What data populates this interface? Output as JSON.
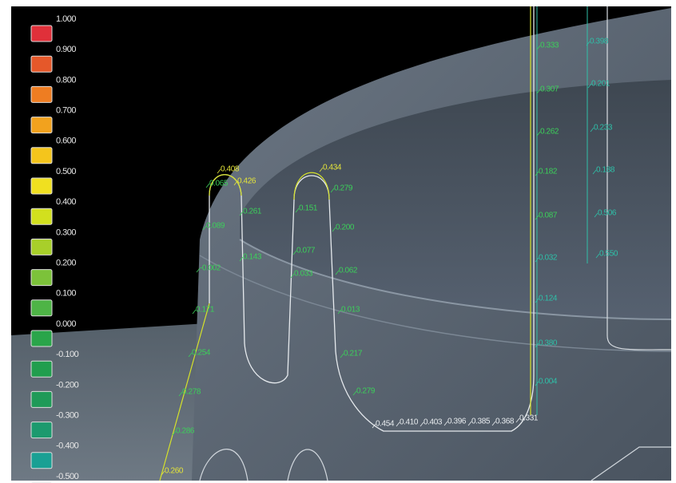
{
  "legend": [
    {
      "label": "1.000",
      "color": "#e0303a"
    },
    {
      "label": "0.900",
      "color": "#e5582a"
    },
    {
      "label": "0.800",
      "color": "#ee7d22"
    },
    {
      "label": "0.700",
      "color": "#f2a21e"
    },
    {
      "label": "0.600",
      "color": "#f4c51c"
    },
    {
      "label": "0.500",
      "color": "#f0e020"
    },
    {
      "label": "0.400",
      "color": "#d2e01e"
    },
    {
      "label": "0.300",
      "color": "#a8cf2a"
    },
    {
      "label": "0.200",
      "color": "#7cc23a"
    },
    {
      "label": "0.100",
      "color": "#4eb446"
    },
    {
      "label": "0.000",
      "color": "#2aa54a"
    },
    {
      "label": "-0.100",
      "color": "#219e4e"
    },
    {
      "label": "-0.200",
      "color": "#1f9a58"
    },
    {
      "label": "-0.300",
      "color": "#1c9a6e"
    },
    {
      "label": "-0.400",
      "color": "#1aa094"
    },
    {
      "label": "-0.500",
      "color": "#c8cfd4"
    }
  ],
  "annotations": [
    {
      "text": "0.408"
    },
    {
      "text": "0.426"
    },
    {
      "text": "0.065"
    },
    {
      "text": "0.261"
    },
    {
      "text": "0.089"
    },
    {
      "text": "0.143"
    },
    {
      "text": "-0.002"
    },
    {
      "text": "0.171"
    },
    {
      "text": "0.254"
    },
    {
      "text": "0.278"
    },
    {
      "text": "0.286"
    },
    {
      "text": "0.260"
    },
    {
      "text": "0.434"
    },
    {
      "text": "0.279"
    },
    {
      "text": "0.151"
    },
    {
      "text": "0.200"
    },
    {
      "text": "0.077"
    },
    {
      "text": "0.033"
    },
    {
      "text": "0.062"
    },
    {
      "text": "0.013"
    },
    {
      "text": "0.217"
    },
    {
      "text": "0.279"
    },
    {
      "text": "0.454"
    },
    {
      "text": "0.410"
    },
    {
      "text": "0.403"
    },
    {
      "text": "0.396"
    },
    {
      "text": "0.385"
    },
    {
      "text": "0.368"
    },
    {
      "text": "0.331"
    },
    {
      "text": "0.333"
    },
    {
      "text": "0.307"
    },
    {
      "text": "0.262"
    },
    {
      "text": "0.182"
    },
    {
      "text": "0.087"
    },
    {
      "text": "0.032"
    },
    {
      "text": "0.124"
    },
    {
      "text": "0.380"
    },
    {
      "text": "0.004"
    },
    {
      "text": "0.398"
    },
    {
      "text": "0.201"
    },
    {
      "text": "0.233"
    },
    {
      "text": "0.188"
    },
    {
      "text": "0.506"
    },
    {
      "text": "0.550"
    }
  ]
}
